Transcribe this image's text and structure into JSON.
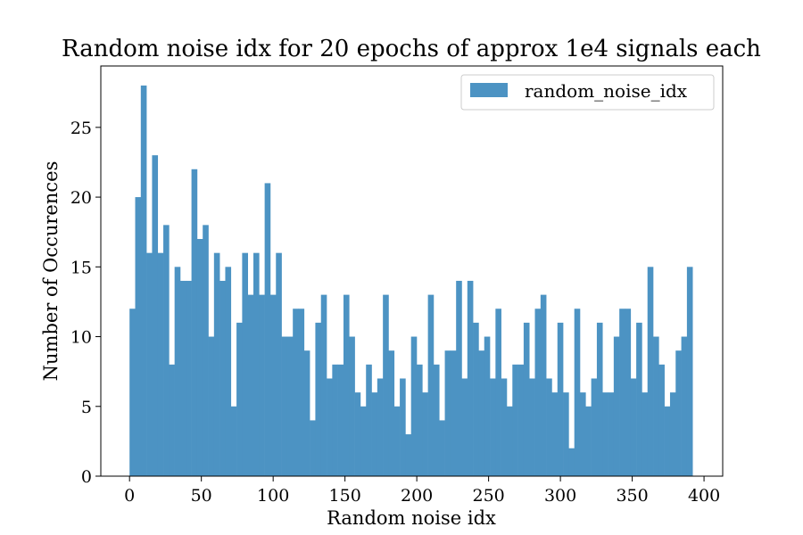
{
  "chart_data": {
    "type": "bar",
    "title": "Random noise idx for 20 epochs of approx 1e4 signals each",
    "xlabel": "Random noise idx",
    "ylabel": "Number of Occurences",
    "xlim": [
      -20,
      413
    ],
    "ylim": [
      0,
      29.4
    ],
    "xticks": [
      0,
      50,
      100,
      150,
      200,
      250,
      300,
      350,
      400
    ],
    "yticks": [
      0,
      5,
      10,
      15,
      20,
      25
    ],
    "bin_start": 0,
    "bin_end": 392,
    "grid": false,
    "legend_position": "top-right",
    "series": [
      {
        "name": "random_noise_idx",
        "color": "#4c93c3",
        "values": [
          12,
          20,
          28,
          16,
          23,
          16,
          18,
          8,
          15,
          14,
          14,
          22,
          17,
          18,
          10,
          16,
          14,
          15,
          5,
          11,
          16,
          13,
          16,
          13,
          21,
          13,
          16,
          10,
          10,
          12,
          12,
          9,
          4,
          11,
          13,
          7,
          8,
          8,
          13,
          10,
          6,
          5,
          8,
          6,
          7,
          13,
          9,
          5,
          7,
          3,
          10,
          8,
          6,
          13,
          8,
          4,
          9,
          9,
          14,
          7,
          14,
          11,
          9,
          10,
          7,
          12,
          7,
          5,
          8,
          8,
          11,
          7,
          12,
          13,
          7,
          6,
          11,
          6,
          2,
          12,
          6,
          5,
          7,
          11,
          6,
          6,
          10,
          12,
          12,
          7,
          11,
          6,
          15,
          10,
          8,
          5,
          6,
          9,
          10,
          15
        ]
      }
    ]
  }
}
